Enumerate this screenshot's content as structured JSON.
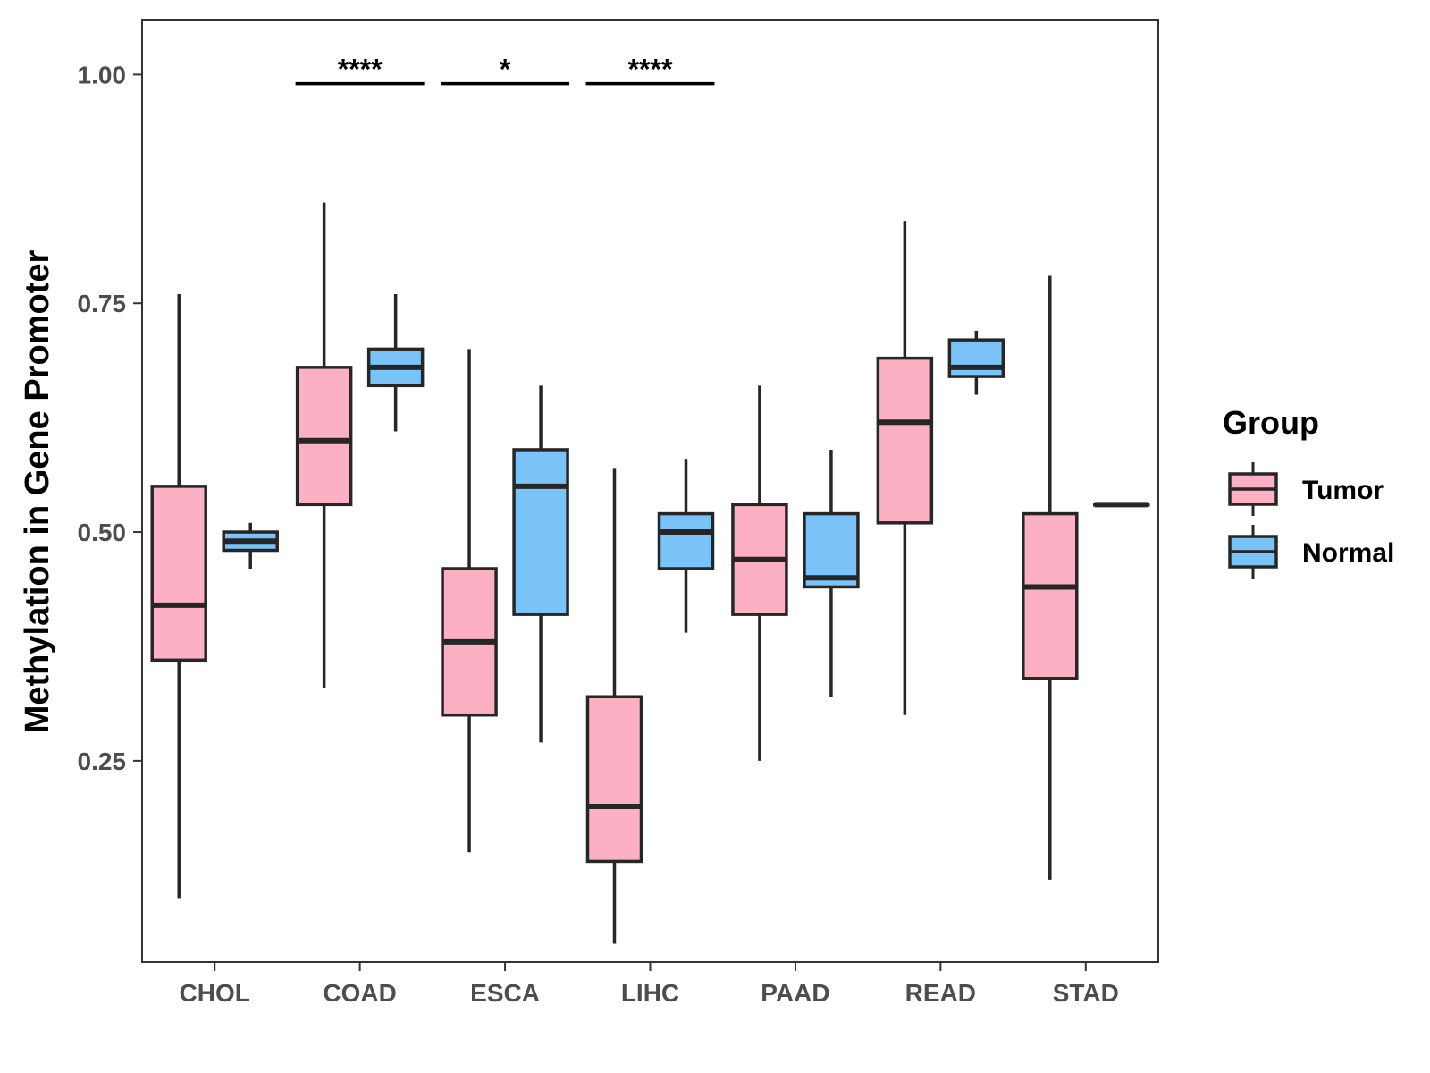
{
  "chart_data": {
    "type": "boxplot",
    "title": "",
    "xlabel": "",
    "ylabel": "Methylation in Gene Promoter",
    "ylim": [
      0.03,
      1.06
    ],
    "yticks": [
      0.25,
      0.5,
      0.75,
      1.0
    ],
    "ytick_labels": [
      "0.25",
      "0.50",
      "0.75",
      "1.00"
    ],
    "categories": [
      "CHOL",
      "COAD",
      "ESCA",
      "LIHC",
      "PAAD",
      "READ",
      "STAD"
    ],
    "legend": {
      "title": "Group",
      "position": "right",
      "entries": [
        "Tumor",
        "Normal"
      ]
    },
    "colors": {
      "Tumor": "#FBB0C4",
      "Normal": "#7AC3F9",
      "outline": "#262626"
    },
    "series": [
      {
        "name": "Tumor",
        "boxes": [
          {
            "category": "CHOL",
            "min": 0.1,
            "q1": 0.36,
            "median": 0.42,
            "q3": 0.55,
            "max": 0.76
          },
          {
            "category": "COAD",
            "min": 0.33,
            "q1": 0.53,
            "median": 0.6,
            "q3": 0.68,
            "max": 0.86
          },
          {
            "category": "ESCA",
            "min": 0.15,
            "q1": 0.3,
            "median": 0.38,
            "q3": 0.46,
            "max": 0.7
          },
          {
            "category": "LIHC",
            "min": 0.05,
            "q1": 0.14,
            "median": 0.2,
            "q3": 0.32,
            "max": 0.57
          },
          {
            "category": "PAAD",
            "min": 0.25,
            "q1": 0.41,
            "median": 0.47,
            "q3": 0.53,
            "max": 0.66
          },
          {
            "category": "READ",
            "min": 0.3,
            "q1": 0.51,
            "median": 0.62,
            "q3": 0.69,
            "max": 0.84
          },
          {
            "category": "STAD",
            "min": 0.12,
            "q1": 0.34,
            "median": 0.44,
            "q3": 0.52,
            "max": 0.78
          }
        ]
      },
      {
        "name": "Normal",
        "boxes": [
          {
            "category": "CHOL",
            "min": 0.46,
            "q1": 0.48,
            "median": 0.49,
            "q3": 0.5,
            "max": 0.51
          },
          {
            "category": "COAD",
            "min": 0.61,
            "q1": 0.66,
            "median": 0.68,
            "q3": 0.7,
            "max": 0.76
          },
          {
            "category": "ESCA",
            "min": 0.27,
            "q1": 0.41,
            "median": 0.55,
            "q3": 0.59,
            "max": 0.66
          },
          {
            "category": "LIHC",
            "min": 0.39,
            "q1": 0.46,
            "median": 0.5,
            "q3": 0.52,
            "max": 0.58
          },
          {
            "category": "PAAD",
            "min": 0.32,
            "q1": 0.44,
            "median": 0.45,
            "q3": 0.52,
            "max": 0.59
          },
          {
            "category": "READ",
            "min": 0.65,
            "q1": 0.67,
            "median": 0.68,
            "q3": 0.71,
            "max": 0.72
          },
          {
            "category": "STAD",
            "min": 0.53,
            "q1": 0.53,
            "median": 0.53,
            "q3": 0.53,
            "max": 0.53
          }
        ]
      }
    ],
    "annotations": [
      {
        "category": "COAD",
        "label": "****",
        "y": 0.99
      },
      {
        "category": "ESCA",
        "label": "*",
        "y": 0.99
      },
      {
        "category": "LIHC",
        "label": "****",
        "y": 0.99
      }
    ]
  }
}
